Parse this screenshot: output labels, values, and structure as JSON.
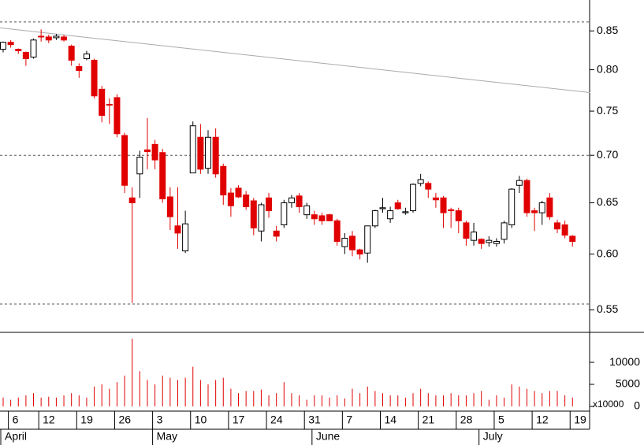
{
  "chart_data": {
    "type": "candlestick",
    "log_scale": true,
    "categories": [
      null,
      "6",
      null,
      null,
      null,
      "12",
      null,
      null,
      null,
      null,
      "19",
      null,
      null,
      null,
      null,
      "26",
      null,
      null,
      null,
      null,
      "3",
      null,
      null,
      null,
      null,
      "10",
      null,
      null,
      null,
      null,
      "17",
      null,
      null,
      null,
      null,
      "24",
      null,
      null,
      null,
      null,
      "31",
      null,
      null,
      null,
      null,
      "7",
      null,
      null,
      null,
      null,
      "14",
      null,
      null,
      null,
      null,
      "21",
      null,
      null,
      null,
      null,
      "28",
      null,
      null,
      null,
      null,
      "5",
      null,
      null,
      null,
      null,
      "12",
      null,
      null,
      null,
      null,
      "19"
    ],
    "months": [
      "April",
      null,
      null,
      null,
      null,
      null,
      null,
      null,
      null,
      null,
      null,
      null,
      null,
      null,
      null,
      null,
      null,
      null,
      null,
      null,
      "May",
      null,
      null,
      null,
      null,
      null,
      null,
      null,
      null,
      null,
      null,
      null,
      null,
      null,
      null,
      null,
      null,
      null,
      null,
      null,
      null,
      "June",
      null,
      null,
      null,
      null,
      null,
      null,
      null,
      null,
      null,
      null,
      null,
      null,
      null,
      null,
      null,
      null,
      null,
      null,
      null,
      null,
      null,
      "July",
      null,
      null,
      null,
      null,
      null,
      null,
      null,
      null,
      null,
      null,
      null,
      null
    ],
    "open": [
      0.826,
      0.835,
      0.826,
      0.822,
      0.816,
      0.843,
      0.842,
      0.841,
      0.842,
      0.83,
      0.804,
      0.814,
      0.812,
      0.776,
      0.758,
      0.766,
      0.722,
      0.655,
      0.68,
      0.706,
      0.712,
      0.703,
      0.656,
      0.627,
      0.603,
      0.681,
      0.72,
      0.686,
      0.72,
      0.688,
      0.66,
      0.665,
      0.658,
      0.652,
      0.622,
      0.655,
      0.622,
      0.628,
      0.65,
      0.657,
      0.638,
      0.638,
      0.637,
      0.638,
      0.632,
      0.607,
      0.617,
      0.604,
      0.601,
      0.627,
      0.644,
      0.634,
      0.65,
      0.64,
      0.642,
      0.67,
      0.67,
      0.655,
      0.655,
      0.643,
      0.642,
      0.63,
      0.613,
      0.614,
      0.611,
      0.61,
      0.614,
      0.628,
      0.668,
      0.673,
      0.642,
      0.64,
      0.655,
      0.63,
      0.628,
      0.617
    ],
    "high": [
      0.836,
      0.838,
      0.827,
      0.823,
      0.84,
      0.852,
      0.845,
      0.846,
      0.845,
      0.832,
      0.808,
      0.824,
      0.814,
      0.78,
      0.765,
      0.77,
      0.725,
      0.666,
      0.705,
      0.742,
      0.717,
      0.707,
      0.666,
      0.666,
      0.642,
      0.738,
      0.735,
      0.728,
      0.73,
      0.691,
      0.665,
      0.668,
      0.662,
      0.655,
      0.65,
      0.66,
      0.627,
      0.653,
      0.658,
      0.66,
      0.65,
      0.642,
      0.64,
      0.639,
      0.634,
      0.62,
      0.622,
      0.605,
      0.627,
      0.643,
      0.655,
      0.646,
      0.653,
      0.645,
      0.67,
      0.68,
      0.672,
      0.66,
      0.657,
      0.645,
      0.645,
      0.632,
      0.63,
      0.615,
      0.617,
      0.615,
      0.632,
      0.665,
      0.678,
      0.675,
      0.645,
      0.652,
      0.66,
      0.633,
      0.632,
      0.618
    ],
    "low": [
      0.822,
      0.828,
      0.82,
      0.805,
      0.814,
      0.836,
      0.834,
      0.838,
      0.836,
      0.805,
      0.79,
      0.812,
      0.765,
      0.737,
      0.735,
      0.72,
      0.66,
      0.556,
      0.655,
      0.685,
      0.685,
      0.65,
      0.623,
      0.605,
      0.601,
      0.681,
      0.68,
      0.68,
      0.676,
      0.648,
      0.636,
      0.655,
      0.643,
      0.618,
      0.612,
      0.635,
      0.612,
      0.625,
      0.645,
      0.64,
      0.634,
      0.628,
      0.628,
      0.632,
      0.608,
      0.6,
      0.598,
      0.595,
      0.592,
      0.625,
      0.64,
      0.63,
      0.643,
      0.638,
      0.64,
      0.667,
      0.655,
      0.645,
      0.625,
      0.625,
      0.62,
      0.608,
      0.608,
      0.605,
      0.607,
      0.607,
      0.61,
      0.625,
      0.66,
      0.636,
      0.622,
      0.628,
      0.633,
      0.62,
      0.615,
      0.607
    ],
    "close": [
      0.835,
      0.832,
      0.824,
      0.814,
      0.838,
      0.842,
      0.838,
      0.843,
      0.838,
      0.812,
      0.799,
      0.82,
      0.768,
      0.745,
      0.757,
      0.724,
      0.668,
      0.65,
      0.698,
      0.704,
      0.695,
      0.654,
      0.636,
      0.62,
      0.629,
      0.733,
      0.685,
      0.72,
      0.68,
      0.658,
      0.647,
      0.656,
      0.646,
      0.625,
      0.648,
      0.642,
      0.617,
      0.65,
      0.655,
      0.646,
      0.647,
      0.634,
      0.632,
      0.632,
      0.612,
      0.615,
      0.604,
      0.6,
      0.627,
      0.642,
      0.645,
      0.642,
      0.644,
      0.641,
      0.669,
      0.674,
      0.664,
      0.653,
      0.64,
      0.642,
      0.632,
      0.615,
      0.621,
      0.61,
      0.613,
      0.612,
      0.63,
      0.664,
      0.673,
      0.64,
      0.64,
      0.65,
      0.636,
      0.624,
      0.618,
      0.612
    ],
    "volume": [
      2000,
      1500,
      2000,
      2500,
      3000,
      2000,
      2200,
      2000,
      2500,
      3000,
      2500,
      2000,
      4500,
      5000,
      4000,
      5500,
      7000,
      15400,
      8000,
      6000,
      5000,
      7000,
      6500,
      6000,
      6500,
      9000,
      6000,
      5000,
      6000,
      6500,
      4000,
      3000,
      3500,
      3500,
      3800,
      2500,
      3000,
      5500,
      3000,
      2500,
      1500,
      2500,
      2500,
      2000,
      2500,
      1800,
      4000,
      3000,
      4500,
      3500,
      3000,
      2500,
      2500,
      2000,
      3000,
      4000,
      3000,
      2500,
      2500,
      3000,
      2500,
      2500,
      3000,
      3500,
      1500,
      2500,
      2000,
      5000,
      4500,
      4000,
      3500,
      3000,
      3500,
      3500,
      2500,
      2000
    ],
    "up_color": "#ffffff",
    "down_color": "#e00000",
    "volume_color": "#e00000",
    "ylim": [
      0.531,
      0.892
    ],
    "yticks": [
      0.55,
      {
        "value": 0.6,
        "label": "0.60"
      },
      0.65,
      {
        "value": 0.7,
        "label": "0.70"
      },
      0.75,
      {
        "value": 0.8,
        "label": "0.80"
      },
      0.85
    ],
    "reference_lines": [
      0.862,
      0.7,
      0.555
    ],
    "trendline": {
      "x": [
        -0.4,
        77.3
      ],
      "y": [
        0.854,
        0.772
      ]
    },
    "volume_ylim": [
      0,
      16800
    ],
    "volume_yticks": [
      0,
      5000,
      10000
    ],
    "volume_unit": "x10000"
  }
}
